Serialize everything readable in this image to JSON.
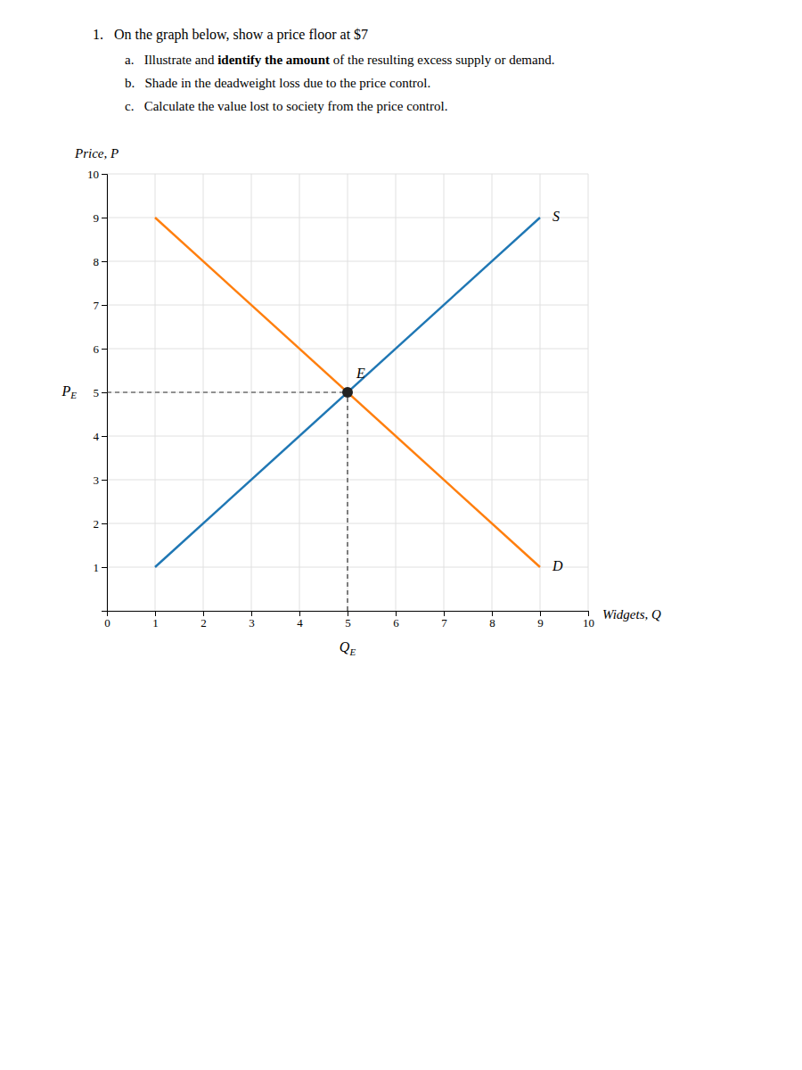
{
  "chart_data": {
    "type": "line",
    "title": "1.   On the graph below, show a price floor at $7",
    "subtitle": [
      [
        "a.   Illustrate and ",
        "identify the amount",
        " of the resulting excess supply or demand."
      ],
      "b.   Shade in the deadweight loss due to the price control.",
      "c.   Calculate the value lost to society from the price control."
    ],
    "x_label": "Widgets, Q",
    "y_label": "Price, P",
    "xlim": [
      0,
      10
    ],
    "ylim": [
      0,
      10
    ],
    "xticks": [
      0,
      1,
      2,
      3,
      4,
      5,
      6,
      7,
      8,
      9,
      10
    ],
    "yticks": [
      1,
      2,
      3,
      4,
      5,
      6,
      7,
      8,
      9,
      10
    ],
    "grid": true,
    "series": [
      {
        "name": "S",
        "x": [
          1,
          9
        ],
        "values": [
          1,
          9
        ]
      },
      {
        "name": "D",
        "x": [
          1,
          9
        ],
        "values": [
          9,
          1
        ]
      },
      {
        "name": "E",
        "type": "scatter",
        "marker": "circle",
        "x": [
          5
        ],
        "values": [
          5
        ]
      }
    ],
    "annotations": [
      {
        "text": "PE"
      },
      {
        "text": "QE"
      }
    ]
  }
}
